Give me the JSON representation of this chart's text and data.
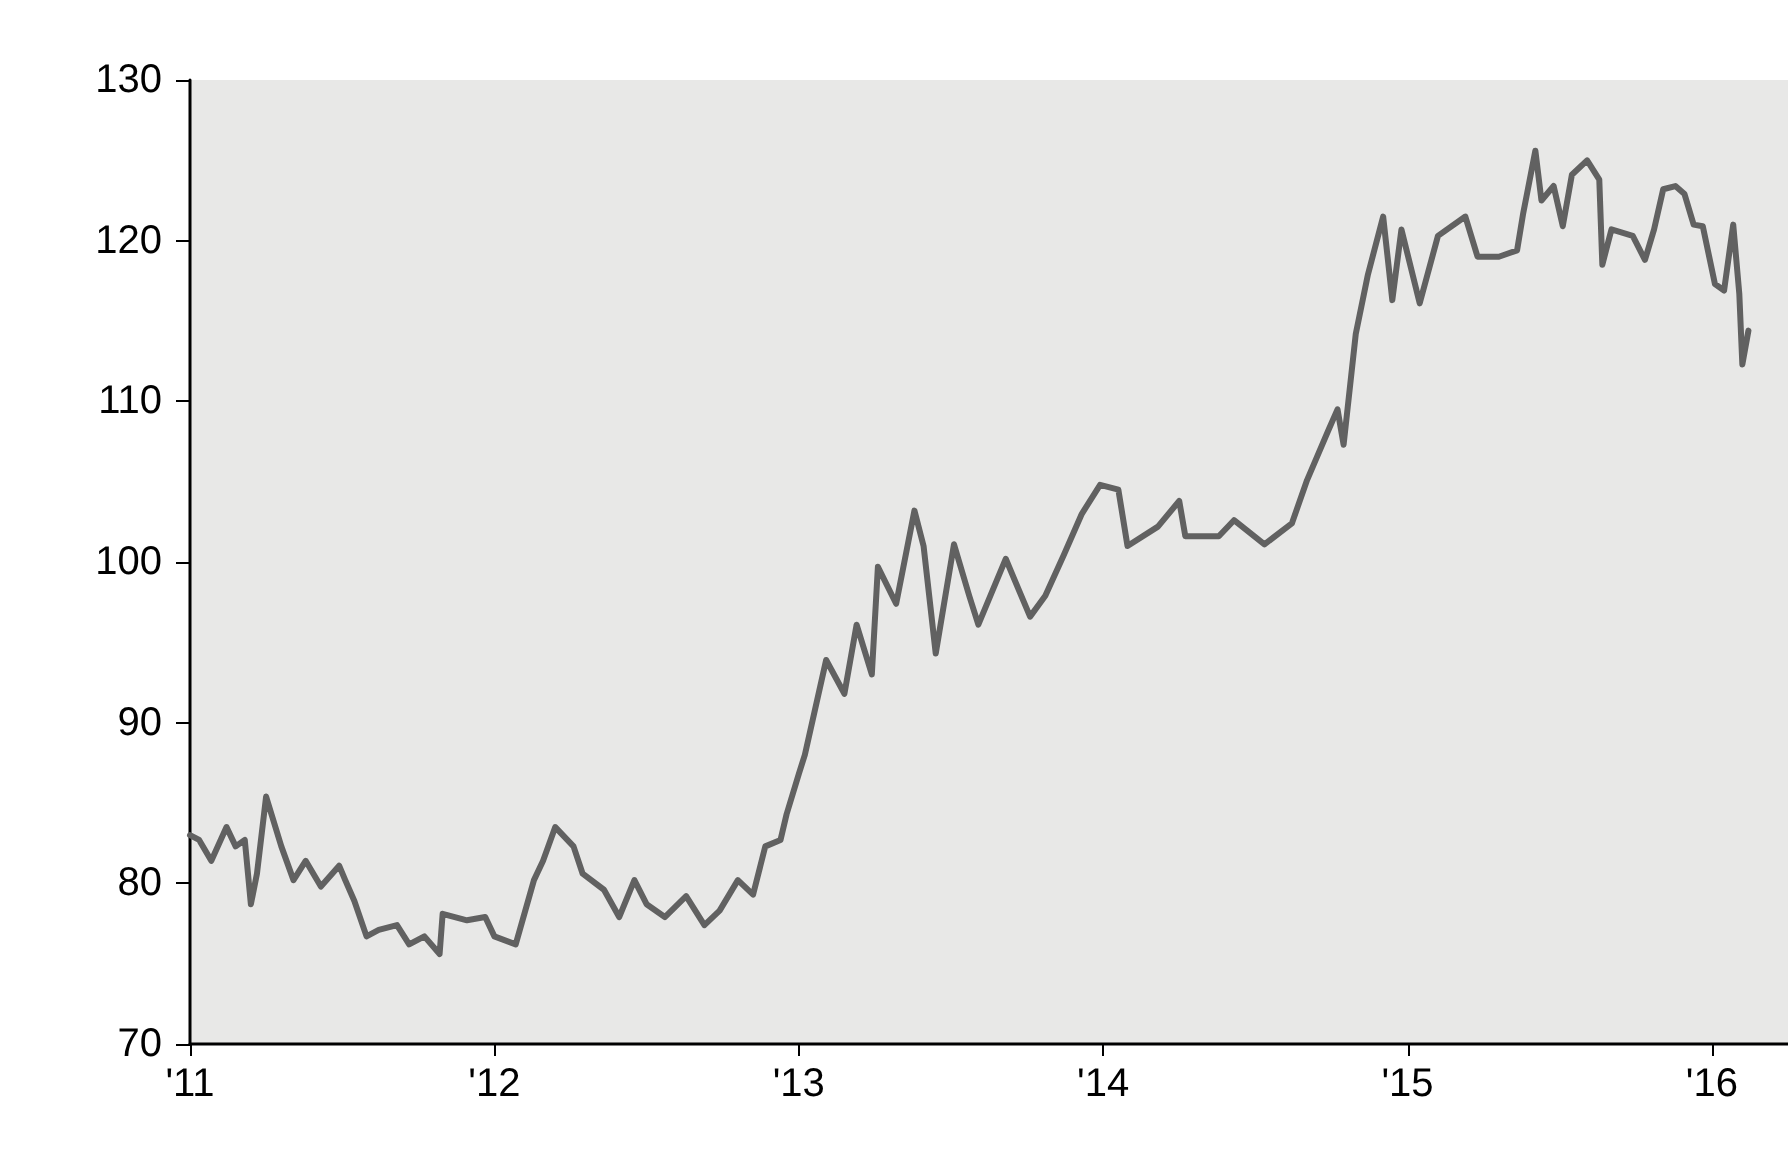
{
  "chart_data": {
    "type": "line",
    "grid": false,
    "marker": "none",
    "line_style": "solid",
    "xlim": [
      2011,
      2016.25
    ],
    "xticks": [
      {
        "value": 2011,
        "label": "'11"
      },
      {
        "value": 2012,
        "label": "'12"
      },
      {
        "value": 2013,
        "label": "'13"
      },
      {
        "value": 2014,
        "label": "'14"
      },
      {
        "value": 2015,
        "label": "'15"
      },
      {
        "value": 2016,
        "label": "'16"
      }
    ],
    "ylim": [
      70,
      130
    ],
    "yticks": [
      70,
      80,
      90,
      100,
      110,
      120,
      130
    ],
    "series": [
      {
        "color": "#616161",
        "x": [
          2011.0,
          2011.03,
          2011.07,
          2011.12,
          2011.15,
          2011.18,
          2011.2,
          2011.22,
          2011.25,
          2011.3,
          2011.34,
          2011.38,
          2011.43,
          2011.49,
          2011.51,
          2011.54,
          2011.58,
          2011.62,
          2011.68,
          2011.72,
          2011.77,
          2011.82,
          2011.83,
          2011.91,
          2011.97,
          2012.0,
          2012.07,
          2012.13,
          2012.16,
          2012.2,
          2012.26,
          2012.29,
          2012.36,
          2012.41,
          2012.46,
          2012.5,
          2012.56,
          2012.63,
          2012.69,
          2012.74,
          2012.8,
          2012.85,
          2012.89,
          2012.94,
          2012.96,
          2013.0,
          2013.02,
          2013.09,
          2013.15,
          2013.19,
          2013.24,
          2013.26,
          2013.32,
          2013.38,
          2013.41,
          2013.45,
          2013.51,
          2013.56,
          2013.59,
          2013.68,
          2013.76,
          2013.81,
          2013.87,
          2013.93,
          2013.99,
          2014.05,
          2014.08,
          2014.18,
          2014.25,
          2014.27,
          2014.38,
          2014.43,
          2014.53,
          2014.62,
          2014.67,
          2014.74,
          2014.77,
          2014.79,
          2014.83,
          2014.87,
          2014.92,
          2014.95,
          2014.98,
          2015.04,
          2015.1,
          2015.19,
          2015.23,
          2015.3,
          2015.36,
          2015.38,
          2015.42,
          2015.44,
          2015.48,
          2015.51,
          2015.54,
          2015.59,
          2015.63,
          2015.64,
          2015.67,
          2015.74,
          2015.78,
          2015.81,
          2015.84,
          2015.88,
          2015.91,
          2015.94,
          2015.97,
          2016.01,
          2016.04,
          2016.07,
          2016.09,
          2016.1,
          2016.12
        ],
        "values": [
          83.0,
          82.7,
          81.4,
          83.5,
          82.3,
          82.7,
          78.7,
          80.6,
          85.4,
          82.3,
          80.2,
          81.4,
          79.8,
          81.1,
          80.2,
          78.9,
          76.7,
          77.1,
          77.4,
          76.2,
          76.7,
          75.6,
          78.1,
          77.7,
          77.9,
          76.7,
          76.2,
          80.2,
          81.4,
          83.5,
          82.3,
          80.6,
          79.6,
          77.9,
          80.2,
          78.7,
          77.9,
          79.2,
          77.4,
          78.3,
          80.2,
          79.3,
          82.3,
          82.7,
          84.3,
          86.8,
          88.0,
          93.9,
          91.8,
          96.1,
          93.0,
          99.7,
          97.4,
          103.2,
          101.0,
          94.3,
          101.1,
          97.9,
          96.1,
          100.2,
          96.6,
          97.9,
          100.4,
          103.0,
          104.8,
          104.5,
          101.0,
          102.2,
          103.8,
          101.6,
          101.6,
          102.6,
          101.1,
          102.4,
          105.1,
          108.2,
          109.5,
          107.3,
          114.2,
          117.9,
          121.5,
          116.3,
          120.7,
          116.1,
          120.3,
          121.5,
          119.0,
          119.0,
          119.4,
          121.7,
          125.6,
          122.5,
          123.4,
          120.9,
          124.1,
          125.0,
          123.8,
          118.5,
          120.7,
          120.3,
          118.8,
          120.7,
          123.2,
          123.4,
          122.9,
          121.0,
          120.9,
          117.3,
          116.9,
          121.0,
          116.7,
          112.3,
          114.4
        ]
      }
    ]
  }
}
